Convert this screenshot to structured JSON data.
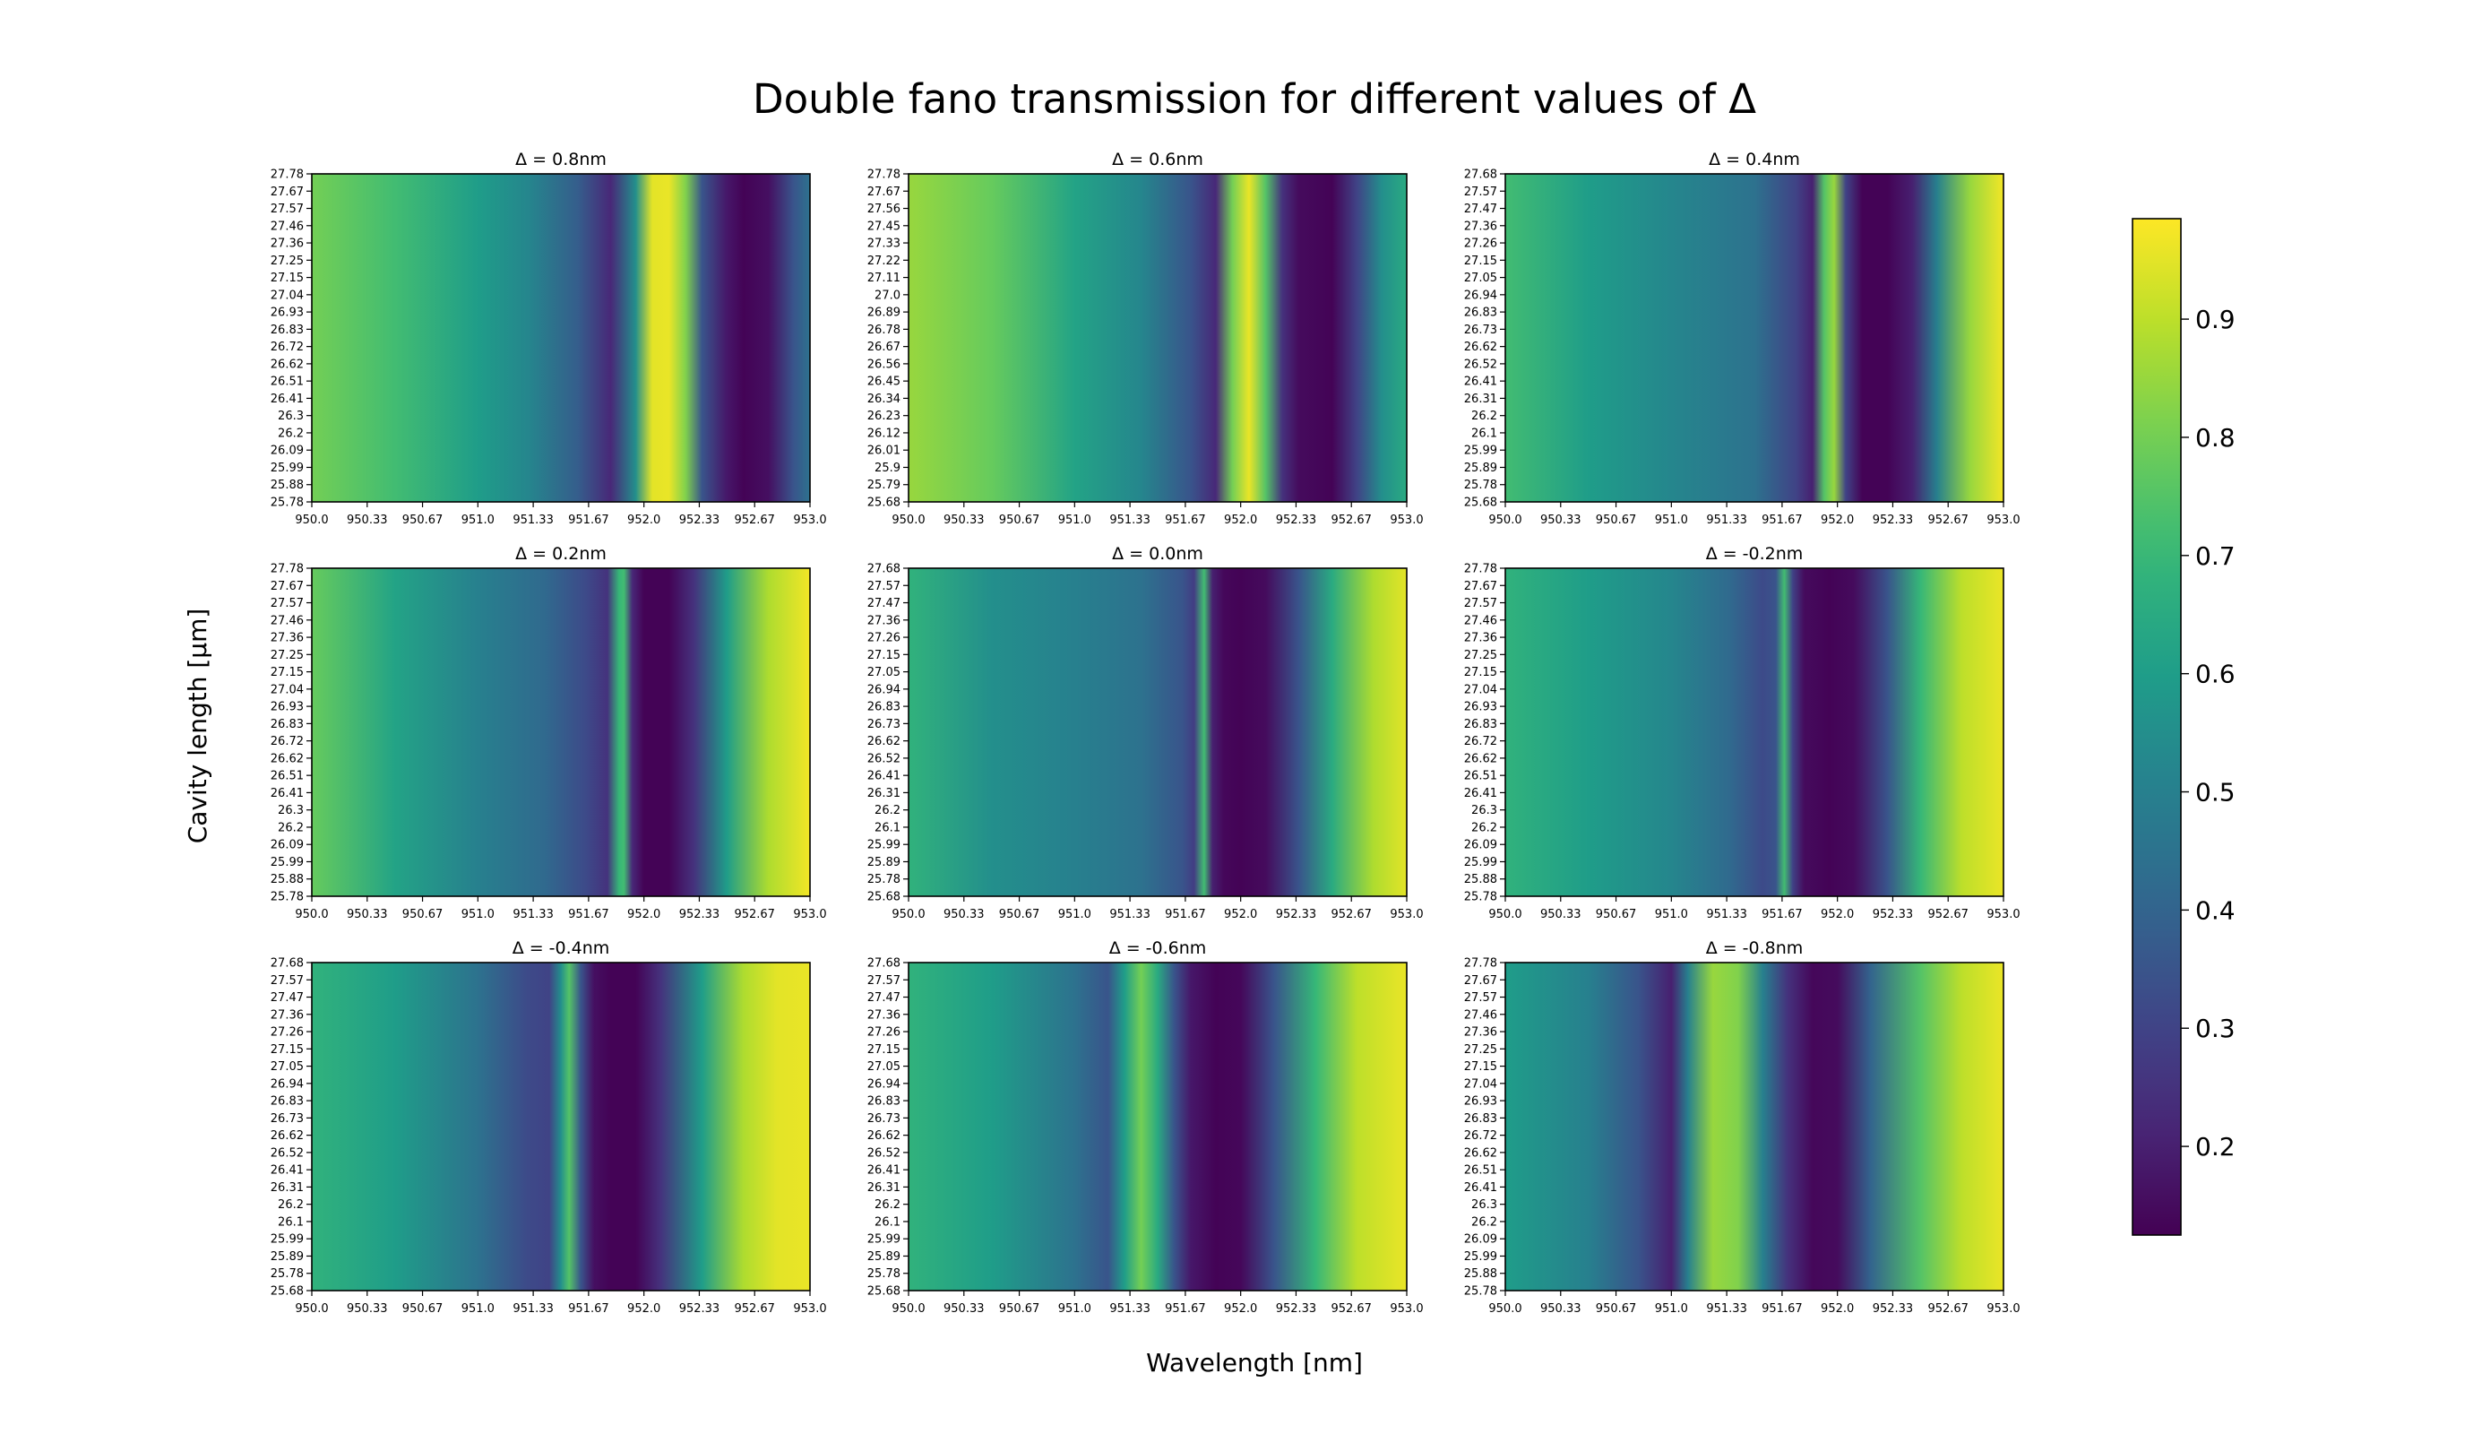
{
  "chart_data": {
    "type": "heatmap",
    "title": "Double fano transmission for different values of Δ",
    "xlabel": "Wavelength [nm]",
    "ylabel": "Cavity length [μm]",
    "colormap": "viridis",
    "colorbar": {
      "min": 0.125,
      "max": 0.985,
      "ticks": [
        "0.2",
        "0.3",
        "0.4",
        "0.5",
        "0.6",
        "0.7",
        "0.8",
        "0.9"
      ]
    },
    "x_range": [
      950.0,
      953.0
    ],
    "x_ticks": [
      "950.0",
      "950.33",
      "950.67",
      "951.0",
      "951.33",
      "951.67",
      "952.0",
      "952.33",
      "952.67",
      "953.0"
    ],
    "panels": [
      {
        "title": "Δ = 0.8nm",
        "y_ticks": [
          "25.78",
          "25.88",
          "25.99",
          "26.09",
          "26.2",
          "26.3",
          "26.41",
          "26.51",
          "26.62",
          "26.72",
          "26.83",
          "26.93",
          "27.04",
          "27.15",
          "27.25",
          "27.36",
          "27.46",
          "27.57",
          "27.67",
          "27.78"
        ],
        "profile": {
          "x": [
            950.0,
            950.5,
            951.0,
            951.3,
            951.6,
            951.8,
            951.95,
            952.05,
            952.15,
            952.25,
            952.35,
            952.5,
            952.6,
            952.75,
            952.9,
            953.0
          ],
          "value": [
            0.8,
            0.72,
            0.6,
            0.52,
            0.38,
            0.22,
            0.55,
            0.95,
            0.96,
            0.82,
            0.35,
            0.18,
            0.13,
            0.16,
            0.35,
            0.45
          ]
        }
      },
      {
        "title": "Δ = 0.6nm",
        "y_ticks": [
          "25.68",
          "25.79",
          "25.9",
          "26.01",
          "26.12",
          "26.23",
          "26.34",
          "26.45",
          "26.56",
          "26.67",
          "26.78",
          "26.89",
          "27.0",
          "27.11",
          "27.22",
          "27.33",
          "27.45",
          "27.56",
          "27.67",
          "27.78"
        ],
        "profile": {
          "x": [
            950.0,
            950.5,
            951.0,
            951.4,
            951.7,
            951.85,
            951.95,
            952.05,
            952.15,
            952.25,
            952.35,
            952.55,
            952.7,
            952.85,
            953.0
          ],
          "value": [
            0.85,
            0.78,
            0.62,
            0.52,
            0.35,
            0.22,
            0.8,
            0.96,
            0.75,
            0.25,
            0.15,
            0.13,
            0.3,
            0.55,
            0.65
          ]
        }
      },
      {
        "title": "Δ = 0.4nm",
        "y_ticks": [
          "25.68",
          "25.78",
          "25.89",
          "25.99",
          "26.1",
          "26.2",
          "26.31",
          "26.41",
          "26.52",
          "26.62",
          "26.73",
          "26.83",
          "26.94",
          "27.05",
          "27.15",
          "27.26",
          "27.36",
          "27.47",
          "27.57",
          "27.68"
        ],
        "profile": {
          "x": [
            950.0,
            950.5,
            951.0,
            951.5,
            951.75,
            951.85,
            951.92,
            951.98,
            952.05,
            952.15,
            952.3,
            952.45,
            952.6,
            952.8,
            953.0
          ],
          "value": [
            0.72,
            0.6,
            0.52,
            0.45,
            0.3,
            0.2,
            0.75,
            0.85,
            0.3,
            0.13,
            0.13,
            0.2,
            0.5,
            0.85,
            0.97
          ]
        }
      },
      {
        "title": "Δ = 0.2nm",
        "y_ticks": [
          "25.78",
          "25.88",
          "25.99",
          "26.09",
          "26.2",
          "26.3",
          "26.41",
          "26.51",
          "26.62",
          "26.72",
          "26.83",
          "26.93",
          "27.04",
          "27.15",
          "27.25",
          "27.36",
          "27.46",
          "27.57",
          "27.67",
          "27.78"
        ],
        "profile": {
          "x": [
            950.0,
            950.5,
            951.0,
            951.4,
            951.65,
            951.78,
            951.85,
            951.88,
            951.93,
            952.0,
            952.15,
            952.3,
            952.5,
            952.75,
            953.0
          ],
          "value": [
            0.78,
            0.62,
            0.5,
            0.42,
            0.32,
            0.25,
            0.7,
            0.72,
            0.22,
            0.13,
            0.13,
            0.25,
            0.6,
            0.88,
            0.97
          ]
        }
      },
      {
        "title": "Δ = 0.0nm",
        "y_ticks": [
          "25.68",
          "25.78",
          "25.89",
          "25.99",
          "26.1",
          "26.2",
          "26.31",
          "26.41",
          "26.52",
          "26.62",
          "26.73",
          "26.83",
          "26.94",
          "27.05",
          "27.15",
          "27.26",
          "27.36",
          "27.47",
          "27.57",
          "27.68"
        ],
        "profile": {
          "x": [
            950.0,
            950.5,
            951.0,
            951.4,
            951.65,
            951.72,
            951.78,
            951.83,
            951.9,
            952.0,
            952.15,
            952.35,
            952.55,
            952.8,
            953.0
          ],
          "value": [
            0.68,
            0.55,
            0.5,
            0.45,
            0.35,
            0.28,
            0.72,
            0.2,
            0.14,
            0.13,
            0.15,
            0.35,
            0.65,
            0.88,
            0.95
          ]
        }
      },
      {
        "title": "Δ = -0.2nm",
        "y_ticks": [
          "25.78",
          "25.88",
          "25.99",
          "26.09",
          "26.2",
          "26.3",
          "26.41",
          "26.51",
          "26.62",
          "26.72",
          "26.83",
          "26.93",
          "27.04",
          "27.15",
          "27.25",
          "27.36",
          "27.46",
          "27.57",
          "27.67",
          "27.78"
        ],
        "profile": {
          "x": [
            950.0,
            950.5,
            951.0,
            951.35,
            951.55,
            951.63,
            951.68,
            951.73,
            951.8,
            951.95,
            952.1,
            952.3,
            952.5,
            952.75,
            953.0
          ],
          "value": [
            0.68,
            0.6,
            0.52,
            0.42,
            0.32,
            0.35,
            0.72,
            0.3,
            0.15,
            0.13,
            0.15,
            0.35,
            0.7,
            0.9,
            0.96
          ]
        }
      },
      {
        "title": "Δ = -0.4nm",
        "y_ticks": [
          "25.68",
          "25.78",
          "25.89",
          "25.99",
          "26.1",
          "26.2",
          "26.31",
          "26.41",
          "26.52",
          "26.62",
          "26.73",
          "26.83",
          "26.94",
          "27.05",
          "27.15",
          "27.26",
          "27.36",
          "27.47",
          "27.57",
          "27.68"
        ],
        "profile": {
          "x": [
            950.0,
            950.5,
            951.0,
            951.3,
            951.43,
            951.5,
            951.55,
            951.62,
            951.7,
            951.8,
            951.95,
            952.1,
            952.35,
            952.6,
            952.8,
            953.0
          ],
          "value": [
            0.68,
            0.6,
            0.45,
            0.32,
            0.3,
            0.55,
            0.75,
            0.35,
            0.16,
            0.13,
            0.13,
            0.25,
            0.6,
            0.88,
            0.95,
            0.96
          ]
        }
      },
      {
        "title": "Δ = -0.6nm",
        "y_ticks": [
          "25.68",
          "25.78",
          "25.89",
          "25.99",
          "26.1",
          "26.2",
          "26.31",
          "26.41",
          "26.52",
          "26.62",
          "26.73",
          "26.83",
          "26.94",
          "27.05",
          "27.15",
          "27.26",
          "27.36",
          "27.47",
          "27.57",
          "27.68"
        ],
        "profile": {
          "x": [
            950.0,
            950.5,
            951.0,
            951.2,
            951.3,
            951.4,
            951.5,
            951.6,
            951.7,
            951.85,
            952.0,
            952.2,
            952.45,
            952.7,
            953.0
          ],
          "value": [
            0.68,
            0.6,
            0.45,
            0.35,
            0.6,
            0.8,
            0.65,
            0.35,
            0.18,
            0.13,
            0.14,
            0.35,
            0.7,
            0.9,
            0.96
          ]
        }
      },
      {
        "title": "Δ = -0.8nm",
        "y_ticks": [
          "25.78",
          "25.88",
          "25.99",
          "26.09",
          "26.2",
          "26.3",
          "26.41",
          "26.51",
          "26.62",
          "26.72",
          "26.83",
          "26.93",
          "27.04",
          "27.15",
          "27.25",
          "27.36",
          "27.46",
          "27.57",
          "27.67",
          "27.78"
        ],
        "profile": {
          "x": [
            950.0,
            950.5,
            950.8,
            951.0,
            951.1,
            951.25,
            951.4,
            951.55,
            951.7,
            951.85,
            952.0,
            952.2,
            952.5,
            952.75,
            953.0
          ],
          "value": [
            0.6,
            0.5,
            0.35,
            0.2,
            0.5,
            0.85,
            0.82,
            0.5,
            0.25,
            0.14,
            0.15,
            0.4,
            0.75,
            0.9,
            0.96
          ]
        }
      }
    ]
  }
}
